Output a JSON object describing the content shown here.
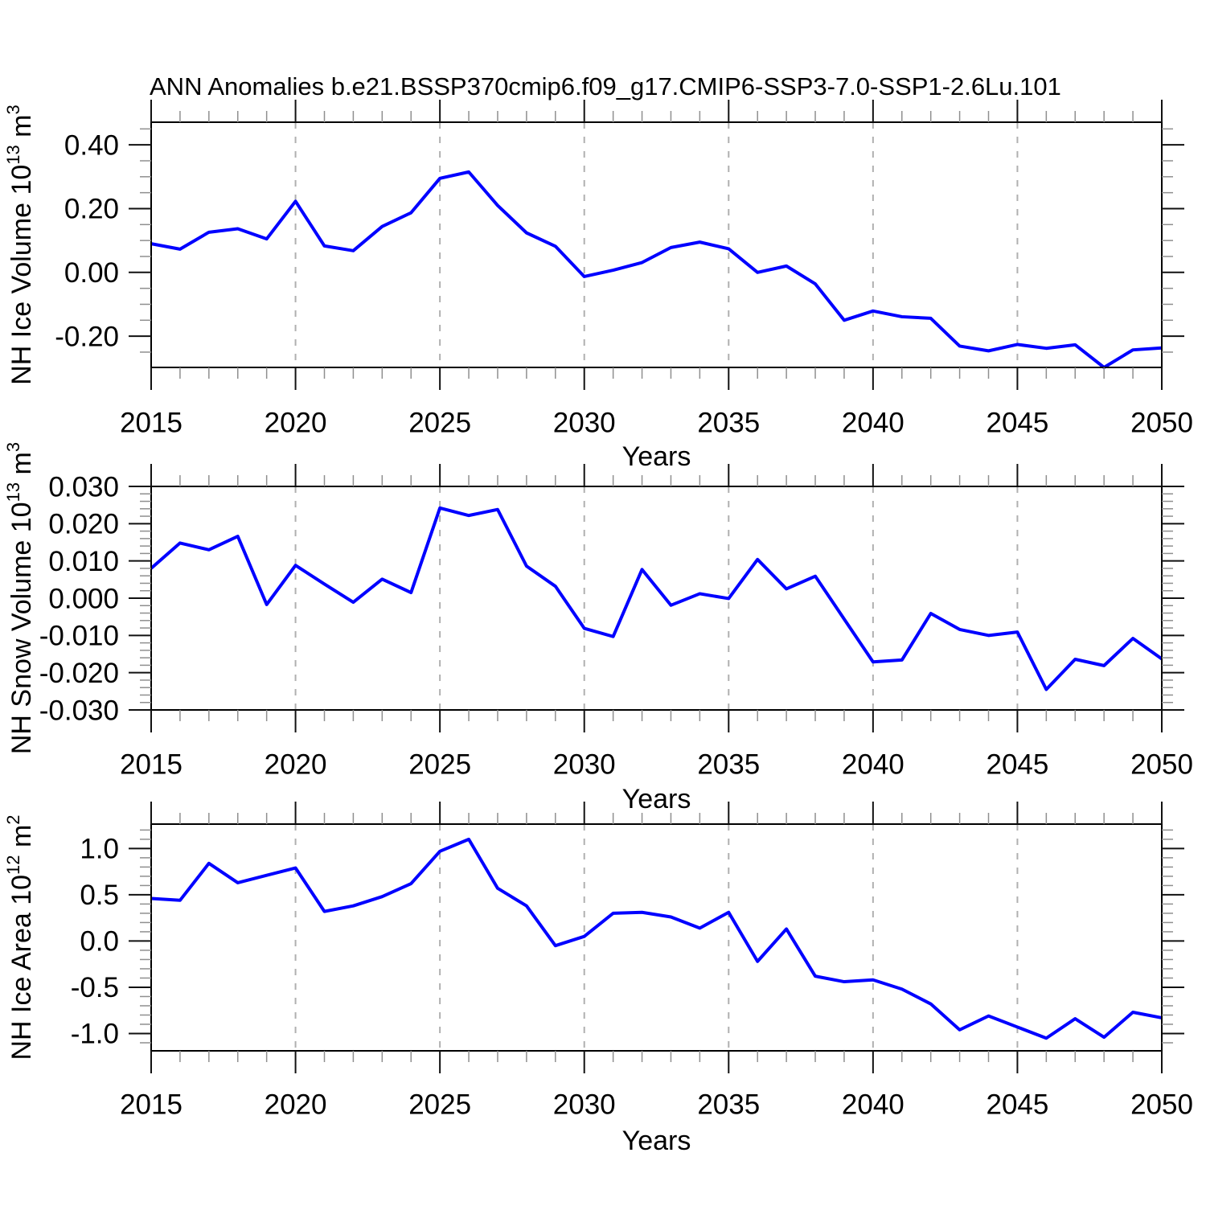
{
  "title": "ANN Anomalies b.e21.BSSP370cmip6.f09_g17.CMIP6-SSP3-7.0-SSP1-2.6Lu.101",
  "line_color": "#0000ff",
  "grid_color": "#b0b0b0",
  "chart_data": [
    {
      "type": "line",
      "id": "nh-ice-volume",
      "title": "",
      "xlabel": "Years",
      "ylabel": "NH Ice Volume 10¹³ m³",
      "ylabel_parts": [
        {
          "t": "NH Ice Volume 10"
        },
        {
          "t": "13",
          "sup": true
        },
        {
          "t": " m"
        },
        {
          "t": "3",
          "sup": true
        }
      ],
      "x": [
        2015,
        2016,
        2017,
        2018,
        2019,
        2020,
        2021,
        2022,
        2023,
        2024,
        2025,
        2026,
        2027,
        2028,
        2029,
        2030,
        2031,
        2032,
        2033,
        2034,
        2035,
        2036,
        2037,
        2038,
        2039,
        2040,
        2041,
        2042,
        2043,
        2044,
        2045,
        2046,
        2047,
        2048,
        2049,
        2050
      ],
      "values": [
        0.09,
        0.073,
        0.126,
        0.137,
        0.105,
        0.223,
        0.083,
        0.068,
        0.144,
        0.187,
        0.295,
        0.315,
        0.21,
        0.124,
        0.082,
        -0.013,
        0.007,
        0.031,
        0.078,
        0.095,
        0.074,
        0.0,
        0.02,
        -0.036,
        -0.15,
        -0.121,
        -0.139,
        -0.144,
        -0.231,
        -0.246,
        -0.226,
        -0.238,
        -0.227,
        -0.298,
        -0.243,
        -0.237
      ],
      "xlim": [
        2015,
        2050
      ],
      "ylim": [
        -0.298,
        0.471
      ],
      "x_major_ticks": [
        2015,
        2020,
        2025,
        2030,
        2035,
        2040,
        2045,
        2050
      ],
      "x_tick_labels": [
        "2015",
        "2020",
        "2025",
        "2030",
        "2035",
        "2040",
        "2045",
        "2050"
      ],
      "x_minor_step": 1,
      "y_major_ticks": [
        0.4,
        0.2,
        0.0,
        -0.2
      ],
      "y_tick_labels": [
        "0.40",
        "0.20",
        "0.00",
        "-0.20"
      ],
      "y_minor_step": 0.05,
      "grid_x": [
        2020,
        2025,
        2030,
        2035,
        2040,
        2045
      ],
      "grid_y_on": false
    },
    {
      "type": "line",
      "id": "nh-snow-volume",
      "title": "",
      "xlabel": "Years",
      "ylabel": "NH Snow Volume 10¹³ m³",
      "ylabel_parts": [
        {
          "t": "NH Snow Volume 10"
        },
        {
          "t": "13",
          "sup": true
        },
        {
          "t": " m"
        },
        {
          "t": "3",
          "sup": true
        }
      ],
      "x": [
        2015,
        2016,
        2017,
        2018,
        2019,
        2020,
        2021,
        2022,
        2023,
        2024,
        2025,
        2026,
        2027,
        2028,
        2029,
        2030,
        2031,
        2032,
        2033,
        2034,
        2035,
        2036,
        2037,
        2038,
        2039,
        2040,
        2041,
        2042,
        2043,
        2044,
        2045,
        2046,
        2047,
        2048,
        2049,
        2050
      ],
      "values": [
        0.008,
        0.0148,
        0.013,
        0.0166,
        -0.0017,
        0.0088,
        0.0038,
        -0.0011,
        0.0051,
        0.0015,
        0.0242,
        0.0222,
        0.0238,
        0.0086,
        0.0032,
        -0.0081,
        -0.0103,
        0.0077,
        -0.0019,
        0.0012,
        -0.0001,
        0.0104,
        0.0025,
        0.0059,
        -0.0056,
        -0.0171,
        -0.0166,
        -0.0041,
        -0.0084,
        -0.01,
        -0.0091,
        -0.0245,
        -0.0164,
        -0.0181,
        -0.0108,
        -0.0163
      ],
      "xlim": [
        2015,
        2050
      ],
      "ylim": [
        -0.03,
        0.03
      ],
      "x_major_ticks": [
        2015,
        2020,
        2025,
        2030,
        2035,
        2040,
        2045,
        2050
      ],
      "x_tick_labels": [
        "2015",
        "2020",
        "2025",
        "2030",
        "2035",
        "2040",
        "2045",
        "2050"
      ],
      "x_minor_step": 1,
      "y_major_ticks": [
        0.03,
        0.02,
        0.01,
        0.0,
        -0.01,
        -0.02,
        -0.03
      ],
      "y_tick_labels": [
        "0.030",
        "0.020",
        "0.010",
        "0.000",
        "-0.010",
        "-0.020",
        "-0.030"
      ],
      "y_minor_step": 0.002,
      "grid_x": [
        2020,
        2025,
        2030,
        2035,
        2040,
        2045
      ],
      "grid_y_on": false
    },
    {
      "type": "line",
      "id": "nh-ice-area",
      "title": "",
      "xlabel": "Years",
      "ylabel": "NH Ice Area 10¹² m²",
      "ylabel_parts": [
        {
          "t": "NH Ice Area 10"
        },
        {
          "t": "12",
          "sup": true
        },
        {
          "t": " m"
        },
        {
          "t": "2",
          "sup": true
        }
      ],
      "x": [
        2015,
        2016,
        2017,
        2018,
        2019,
        2020,
        2021,
        2022,
        2023,
        2024,
        2025,
        2026,
        2027,
        2028,
        2029,
        2030,
        2031,
        2032,
        2033,
        2034,
        2035,
        2036,
        2037,
        2038,
        2039,
        2040,
        2041,
        2042,
        2043,
        2044,
        2045,
        2046,
        2047,
        2048,
        2049,
        2050
      ],
      "values": [
        0.46,
        0.44,
        0.84,
        0.63,
        0.71,
        0.79,
        0.32,
        0.38,
        0.48,
        0.62,
        0.97,
        1.1,
        0.57,
        0.38,
        -0.05,
        0.05,
        0.3,
        0.31,
        0.26,
        0.14,
        0.31,
        -0.22,
        0.13,
        -0.38,
        -0.44,
        -0.42,
        -0.52,
        -0.68,
        -0.96,
        -0.81,
        -0.93,
        -1.05,
        -0.84,
        -1.04,
        -0.77,
        -0.83
      ],
      "xlim": [
        2015,
        2050
      ],
      "ylim": [
        -1.187,
        1.264
      ],
      "x_major_ticks": [
        2015,
        2020,
        2025,
        2030,
        2035,
        2040,
        2045,
        2050
      ],
      "x_tick_labels": [
        "2015",
        "2020",
        "2025",
        "2030",
        "2035",
        "2040",
        "2045",
        "2050"
      ],
      "x_minor_step": 1,
      "y_major_ticks": [
        1.0,
        0.5,
        0.0,
        -0.5,
        -1.0
      ],
      "y_tick_labels": [
        "1.0",
        "0.5",
        "0.0",
        "-0.5",
        "-1.0"
      ],
      "y_minor_step": 0.1,
      "grid_x": [
        2020,
        2025,
        2030,
        2035,
        2040,
        2045
      ],
      "grid_y_on": false
    }
  ]
}
